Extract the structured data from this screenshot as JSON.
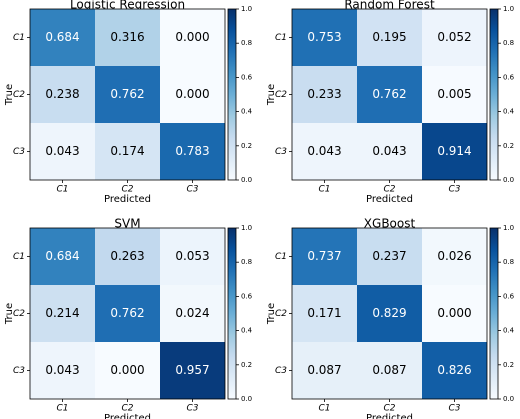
{
  "chart_data": [
    {
      "type": "heatmap",
      "title": "Logistic Regression",
      "x_label": "Predicted",
      "y_label": "True",
      "x_categories": [
        "C1",
        "C2",
        "C3"
      ],
      "y_categories": [
        "C1",
        "C2",
        "C3"
      ],
      "values": [
        [
          0.684,
          0.316,
          0.0
        ],
        [
          0.238,
          0.762,
          0.0
        ],
        [
          0.043,
          0.174,
          0.783
        ]
      ],
      "value_labels": [
        [
          "0.684",
          "0.316",
          "0.000"
        ],
        [
          "0.238",
          "0.762",
          "0.000"
        ],
        [
          "0.043",
          "0.174",
          "0.783"
        ]
      ],
      "colormap": "Blues",
      "clim": [
        0,
        1
      ],
      "cticks": [
        {
          "value": 0,
          "label": "0.0"
        },
        0.2,
        0.4,
        0.6,
        0.8,
        {
          "value": 1,
          "label": "1.0"
        }
      ]
    },
    {
      "type": "heatmap",
      "title": "Random Forest",
      "x_label": "Predicted",
      "y_label": "True",
      "x_categories": [
        "C1",
        "C2",
        "C3"
      ],
      "y_categories": [
        "C1",
        "C2",
        "C3"
      ],
      "values": [
        [
          0.753,
          0.195,
          0.052
        ],
        [
          0.233,
          0.762,
          0.005
        ],
        [
          0.043,
          0.043,
          0.914
        ]
      ],
      "value_labels": [
        [
          "0.753",
          "0.195",
          "0.052"
        ],
        [
          "0.233",
          "0.762",
          "0.005"
        ],
        [
          "0.043",
          "0.043",
          "0.914"
        ]
      ],
      "colormap": "Blues",
      "clim": [
        0,
        1
      ],
      "cticks": [
        {
          "value": 0,
          "label": "0.0"
        },
        0.2,
        0.4,
        0.6,
        0.8,
        {
          "value": 1,
          "label": "1.0"
        }
      ]
    },
    {
      "type": "heatmap",
      "title": "SVM",
      "x_label": "Predicted",
      "y_label": "True",
      "x_categories": [
        "C1",
        "C2",
        "C3"
      ],
      "y_categories": [
        "C1",
        "C2",
        "C3"
      ],
      "values": [
        [
          0.684,
          0.263,
          0.053
        ],
        [
          0.214,
          0.762,
          0.024
        ],
        [
          0.043,
          0.0,
          0.957
        ]
      ],
      "value_labels": [
        [
          "0.684",
          "0.263",
          "0.053"
        ],
        [
          "0.214",
          "0.762",
          "0.024"
        ],
        [
          "0.043",
          "0.000",
          "0.957"
        ]
      ],
      "colormap": "Blues",
      "clim": [
        0,
        1
      ],
      "cticks": [
        {
          "value": 0,
          "label": "0.0"
        },
        0.2,
        0.4,
        0.6,
        0.8,
        {
          "value": 1,
          "label": "1.0"
        }
      ]
    },
    {
      "type": "heatmap",
      "title": "XGBoost",
      "x_label": "Predicted",
      "y_label": "True",
      "x_categories": [
        "C1",
        "C2",
        "C3"
      ],
      "y_categories": [
        "C1",
        "C2",
        "C3"
      ],
      "values": [
        [
          0.737,
          0.237,
          0.026
        ],
        [
          0.171,
          0.829,
          0.0
        ],
        [
          0.087,
          0.087,
          0.826
        ]
      ],
      "value_labels": [
        [
          "0.737",
          "0.237",
          "0.026"
        ],
        [
          "0.171",
          "0.829",
          "0.000"
        ],
        [
          "0.087",
          "0.087",
          "0.826"
        ]
      ],
      "colormap": "Blues",
      "clim": [
        0,
        1
      ],
      "cticks": [
        {
          "value": 0,
          "label": "0.0"
        },
        0.2,
        0.4,
        0.6,
        0.8,
        {
          "value": 1,
          "label": "1.0"
        }
      ]
    }
  ]
}
